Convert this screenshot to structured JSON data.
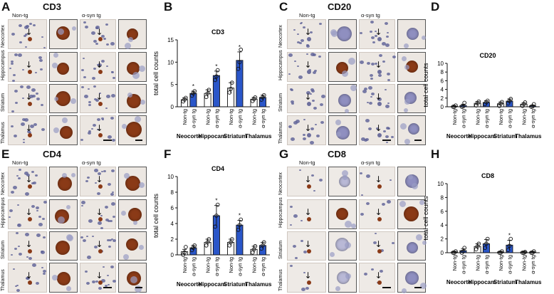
{
  "panels": [
    {
      "letter": "A",
      "title": "CD3",
      "col_left": "Non-tg",
      "col_right": "α-syn tg",
      "rows": [
        "Neocortex",
        "Hippocampus",
        "Striatum",
        "Thalamus"
      ]
    },
    {
      "letter": "C",
      "title": "CD20",
      "col_left": "Non-tg",
      "col_right": "α-syn tg",
      "rows": [
        "Neocortex",
        "Hippocampus",
        "Striatum",
        "Thalamus"
      ]
    },
    {
      "letter": "E",
      "title": "CD4",
      "col_left": "Non-tg",
      "col_right": "α-syn tg",
      "rows": [
        "Neocortex",
        "Hippocampus",
        "Striatum",
        "Thalamus"
      ]
    },
    {
      "letter": "G",
      "title": "CD8",
      "col_left": "Non-tg",
      "col_right": "α-syn tg",
      "rows": [
        "Neocortex",
        "Hippocampus",
        "Striatum",
        "Thalamus"
      ]
    }
  ],
  "chart_panels": [
    {
      "letter": "B"
    },
    {
      "letter": "D"
    },
    {
      "letter": "F"
    },
    {
      "letter": "H"
    }
  ],
  "colors": {
    "nontg_bar": "#ffffff",
    "syn_bar": "#2a56c9",
    "bar_edge": "#111111",
    "tissue": "#ece7e2",
    "nucleus": "#5b5f96",
    "stain": "#8a3a17"
  },
  "chart_data": [
    {
      "type": "bar",
      "title": "CD3",
      "ylabel": "total cell counts",
      "ylim": [
        0,
        15
      ],
      "yticks": [
        0,
        5,
        10,
        15
      ],
      "groups": [
        "Neocortex",
        "Hippocampus",
        "Striatum",
        "Thalamus"
      ],
      "bar_labels": [
        "Non-tg",
        "α-syn tg"
      ],
      "series": [
        {
          "name": "Non-tg",
          "values": [
            1.6,
            3.0,
            4.2,
            1.7
          ],
          "errors": [
            0.4,
            0.8,
            1.2,
            0.4
          ],
          "points": [
            [
              1.2,
              1.6,
              2.0
            ],
            [
              2.2,
              3.0,
              3.8
            ],
            [
              3.2,
              4.0,
              5.4
            ],
            [
              1.3,
              1.7,
              2.1
            ]
          ]
        },
        {
          "name": "α-syn tg",
          "values": [
            3.0,
            7.0,
            10.4,
            2.1
          ],
          "errors": [
            0.5,
            1.0,
            1.9,
            0.5
          ],
          "points": [
            [
              2.5,
              3.0,
              3.5
            ],
            [
              6.0,
              6.8,
              8.2
            ],
            [
              8.5,
              10.0,
              12.8
            ],
            [
              1.6,
              2.1,
              2.6
            ]
          ]
        }
      ],
      "significance": [
        "*",
        "*",
        "*",
        ""
      ]
    },
    {
      "type": "bar",
      "title": "CD20",
      "ylabel": "total cell counts",
      "ylim": [
        0,
        10
      ],
      "yticks": [
        0,
        2,
        4,
        6,
        8,
        10
      ],
      "groups": [
        "Neocortex",
        "Hippocampus",
        "Striatum",
        "Thalamus"
      ],
      "bar_labels": [
        "Non-tg",
        "α-syn tg"
      ],
      "series": [
        {
          "name": "Non-tg",
          "values": [
            0.1,
            0.8,
            0.7,
            0.6
          ],
          "errors": [
            0.1,
            0.4,
            0.4,
            0.3
          ],
          "points": [
            [
              0,
              0,
              0.3
            ],
            [
              0.3,
              0.8,
              1.2
            ],
            [
              0.2,
              0.7,
              1.1
            ],
            [
              0.2,
              0.6,
              1.0
            ]
          ]
        },
        {
          "name": "α-syn tg",
          "values": [
            0.3,
            1.0,
            1.3,
            0.2
          ],
          "errors": [
            0.3,
            0.4,
            0.5,
            0.2
          ],
          "points": [
            [
              0,
              0.1,
              0.9
            ],
            [
              0.6,
              1.0,
              1.4
            ],
            [
              0.8,
              1.3,
              1.8
            ],
            [
              0,
              0.1,
              0.6
            ]
          ]
        }
      ],
      "significance": [
        "",
        "",
        "",
        ""
      ]
    },
    {
      "type": "bar",
      "title": "CD4",
      "ylabel": "total cell counts",
      "ylim": [
        0,
        10
      ],
      "yticks": [
        0,
        2,
        4,
        6,
        8,
        10
      ],
      "groups": [
        "Neocortex",
        "Hippocampus",
        "Striatum",
        "Thalamus"
      ],
      "bar_labels": [
        "Non-tg",
        "α-syn tg"
      ],
      "series": [
        {
          "name": "Non-tg",
          "values": [
            0.4,
            1.6,
            1.6,
            0.7
          ],
          "errors": [
            0.3,
            0.4,
            0.4,
            0.4
          ],
          "points": [
            [
              0,
              0.3,
              1.0
            ],
            [
              1.2,
              1.6,
              2.0
            ],
            [
              1.2,
              1.6,
              2.0
            ],
            [
              0.3,
              0.7,
              1.1
            ]
          ]
        },
        {
          "name": "α-syn tg",
          "values": [
            0.9,
            5.0,
            3.8,
            1.2
          ],
          "errors": [
            0.3,
            1.3,
            0.6,
            0.4
          ],
          "points": [
            [
              0.6,
              0.9,
              1.2
            ],
            [
              3.6,
              5.0,
              6.4
            ],
            [
              3.2,
              3.8,
              4.5
            ],
            [
              0.8,
              1.2,
              1.6
            ]
          ]
        }
      ],
      "significance": [
        "",
        "*",
        "*",
        ""
      ]
    },
    {
      "type": "bar",
      "title": "CD8",
      "ylabel": "total cell counts",
      "ylim": [
        0,
        10
      ],
      "yticks": [
        0,
        2,
        4,
        6,
        8,
        10
      ],
      "groups": [
        "Neocortex",
        "Hippocampus",
        "Striatum",
        "Thalamus"
      ],
      "bar_labels": [
        "Non-tg",
        "α-syn tg"
      ],
      "series": [
        {
          "name": "Non-tg",
          "values": [
            0.1,
            0.9,
            0.1,
            0.1
          ],
          "errors": [
            0.1,
            0.4,
            0.1,
            0.1
          ],
          "points": [
            [
              0,
              0,
              0.2
            ],
            [
              0.5,
              0.9,
              1.3
            ],
            [
              0,
              0,
              0.2
            ],
            [
              0,
              0,
              0.1
            ]
          ]
        },
        {
          "name": "α-syn tg",
          "values": [
            0.3,
            1.3,
            1.1,
            0.1
          ],
          "errors": [
            0.3,
            0.6,
            0.7,
            0.1
          ],
          "points": [
            [
              0,
              0.2,
              0.7
            ],
            [
              0.7,
              1.3,
              2.0
            ],
            [
              0.4,
              1.0,
              2.0
            ],
            [
              0,
              0,
              0.2
            ]
          ]
        }
      ],
      "significance": [
        "",
        "",
        "*",
        ""
      ]
    }
  ]
}
